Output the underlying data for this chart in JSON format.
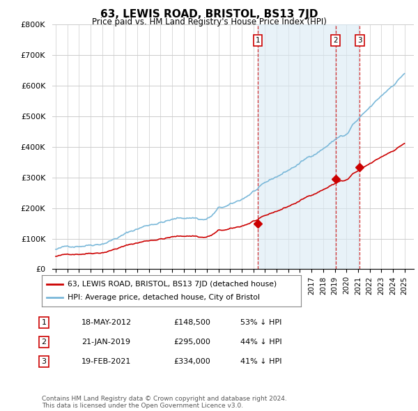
{
  "title": "63, LEWIS ROAD, BRISTOL, BS13 7JD",
  "subtitle": "Price paid vs. HM Land Registry's House Price Index (HPI)",
  "ylim": [
    0,
    800000
  ],
  "yticks": [
    0,
    100000,
    200000,
    300000,
    400000,
    500000,
    600000,
    700000,
    800000
  ],
  "sale_dates_num": [
    2012.38,
    2019.07,
    2021.13
  ],
  "sale_prices": [
    148500,
    295000,
    334000
  ],
  "sale_labels": [
    "1",
    "2",
    "3"
  ],
  "legend_red": "63, LEWIS ROAD, BRISTOL, BS13 7JD (detached house)",
  "legend_blue": "HPI: Average price, detached house, City of Bristol",
  "table_rows": [
    [
      "1",
      "18-MAY-2012",
      "£148,500",
      "53% ↓ HPI"
    ],
    [
      "2",
      "21-JAN-2019",
      "£295,000",
      "44% ↓ HPI"
    ],
    [
      "3",
      "19-FEB-2021",
      "£334,000",
      "41% ↓ HPI"
    ]
  ],
  "footer": "Contains HM Land Registry data © Crown copyright and database right 2024.\nThis data is licensed under the Open Government Licence v3.0.",
  "hpi_color": "#7ab8d9",
  "hpi_fill_color": "#daeaf4",
  "sale_color": "#cc0000",
  "dashed_color": "#cc0000",
  "background_color": "#ffffff",
  "grid_color": "#cccccc",
  "xlim_left": 1994.7,
  "xlim_right": 2025.8
}
